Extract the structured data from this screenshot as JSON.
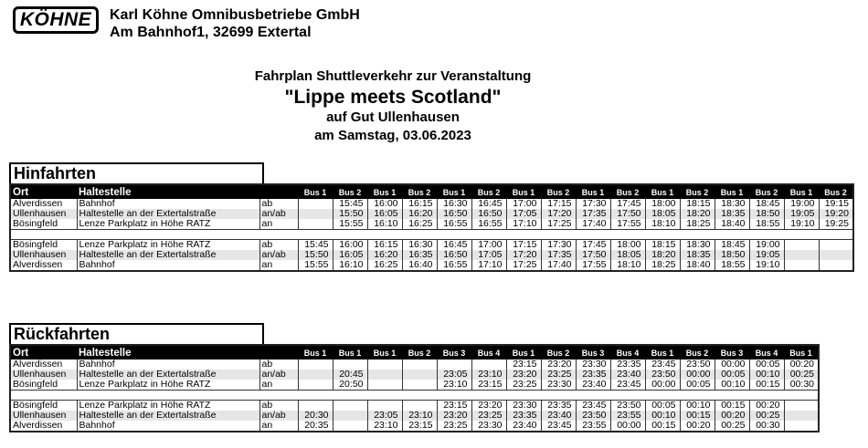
{
  "header": {
    "logo": "KÖHNE",
    "company": "Karl Köhne Omnibusbetriebe GmbH",
    "address": "Am Bahnhof1, 32699 Extertal"
  },
  "title": {
    "line1": "Fahrplan Shuttleverkehr zur Veranstaltung",
    "line2": "\"Lippe meets Scotland\"",
    "line3": "auf Gut Ullenhausen",
    "line4": "am Samstag, 03.06.2023"
  },
  "columns": {
    "ort": "Ort",
    "haltestelle": "Haltestelle"
  },
  "hinfahrten": {
    "title": "Hinfahrten",
    "buses": [
      "Bus 1",
      "Bus 2",
      "Bus 1",
      "Bus 2",
      "Bus 1",
      "Bus 2",
      "Bus 1",
      "Bus 2",
      "Bus 1",
      "Bus 2",
      "Bus 1",
      "Bus 2",
      "Bus 1",
      "Bus 2",
      "Bus 1",
      "Bus 2"
    ],
    "blocks": [
      [
        {
          "ort": "Alverdissen",
          "halt": "Bahnhof",
          "dir": "ab",
          "times": [
            "",
            "15:45",
            "16:00",
            "16:15",
            "16:30",
            "16:45",
            "17:00",
            "17:15",
            "17:30",
            "17:45",
            "18:00",
            "18:15",
            "18:30",
            "18:45",
            "19:00",
            "19:15"
          ]
        },
        {
          "ort": "Ullenhausen",
          "halt": "Haltestelle an der Extertalstraße",
          "dir": "an/ab",
          "times": [
            "",
            "15:50",
            "16:05",
            "16:20",
            "16:50",
            "16:50",
            "17:05",
            "17:20",
            "17:35",
            "17:50",
            "18:05",
            "18:20",
            "18:35",
            "18:50",
            "19:05",
            "19:20"
          ]
        },
        {
          "ort": "Bösingfeld",
          "halt": "Lenze Parkplatz in Höhe RATZ",
          "dir": "an",
          "times": [
            "",
            "15:55",
            "16:10",
            "16:25",
            "16:55",
            "16:55",
            "17:10",
            "17:25",
            "17:40",
            "17:55",
            "18:10",
            "18:25",
            "18:40",
            "18:55",
            "19:10",
            "19:25"
          ]
        }
      ],
      [
        {
          "ort": "Bösingfeld",
          "halt": "Lenze Parkplatz in Höhe RATZ",
          "dir": "ab",
          "times": [
            "15:45",
            "16:00",
            "16:15",
            "16:30",
            "16:45",
            "17:00",
            "17:15",
            "17:30",
            "17:45",
            "18:00",
            "18:15",
            "18:30",
            "18:45",
            "19:00",
            "",
            ""
          ]
        },
        {
          "ort": "Ullenhausen",
          "halt": "Haltestelle an der Extertalstraße",
          "dir": "an/ab",
          "times": [
            "15:50",
            "16:05",
            "16:20",
            "16:35",
            "16:50",
            "17:05",
            "17:20",
            "17:35",
            "17:50",
            "18:05",
            "18:20",
            "18:35",
            "18:50",
            "19:05",
            "",
            ""
          ]
        },
        {
          "ort": "Alverdissen",
          "halt": "Bahnhof",
          "dir": "an",
          "times": [
            "15:55",
            "16:10",
            "16:25",
            "16:40",
            "16:55",
            "17:10",
            "17:25",
            "17:40",
            "17:55",
            "18:10",
            "18:25",
            "18:40",
            "18:55",
            "19:10",
            "",
            ""
          ]
        }
      ]
    ]
  },
  "rueckfahrten": {
    "title": "Rückfahrten",
    "buses": [
      "Bus 1",
      "Bus 1",
      "Bus 1",
      "Bus 2",
      "Bus 3",
      "Bus 4",
      "Bus 1",
      "Bus 2",
      "Bus 3",
      "Bus 4",
      "Bus 1",
      "Bus 2",
      "Bus 3",
      "Bus 4",
      "Bus 1"
    ],
    "blocks": [
      [
        {
          "ort": "Alverdissen",
          "halt": "Bahnhof",
          "dir": "ab",
          "times": [
            "",
            "",
            "",
            "",
            "",
            "",
            "23:15",
            "23:20",
            "23:30",
            "23:35",
            "23:45",
            "23:50",
            "00:00",
            "00:05",
            "00:20"
          ]
        },
        {
          "ort": "Ullenhausen",
          "halt": "Haltestelle an der Extertalstraße",
          "dir": "an/ab",
          "times": [
            "",
            "20:45",
            "",
            "",
            "23:05",
            "23:10",
            "23:20",
            "23:25",
            "23:35",
            "23:40",
            "23:50",
            "00:00",
            "00:05",
            "00:10",
            "00:25"
          ]
        },
        {
          "ort": "Bösingfeld",
          "halt": "Lenze Parkplatz in Höhe RATZ",
          "dir": "an",
          "times": [
            "",
            "20:50",
            "",
            "",
            "23:10",
            "23:15",
            "23:25",
            "23:30",
            "23:40",
            "23:45",
            "00:00",
            "00:05",
            "00:10",
            "00:15",
            "00:30"
          ]
        }
      ],
      [
        {
          "ort": "Bösingfeld",
          "halt": "Lenze Parkplatz in Höhe RATZ",
          "dir": "ab",
          "times": [
            "",
            "",
            "",
            "",
            "23:15",
            "23:20",
            "23:30",
            "23:35",
            "23:45",
            "23:50",
            "00:05",
            "00:10",
            "00:15",
            "00:20",
            ""
          ]
        },
        {
          "ort": "Ullenhausen",
          "halt": "Haltestelle an der Extertalstraße",
          "dir": "an/ab",
          "times": [
            "20:30",
            "",
            "23:05",
            "23:10",
            "23:20",
            "23:25",
            "23:35",
            "23:40",
            "23:50",
            "23:55",
            "00:10",
            "00:15",
            "00:20",
            "00:25",
            ""
          ]
        },
        {
          "ort": "Alverdissen",
          "halt": "Bahnhof",
          "dir": "an",
          "times": [
            "20:35",
            "",
            "23:10",
            "23:15",
            "23:25",
            "23:30",
            "23:40",
            "23:45",
            "23:55",
            "00:00",
            "00:15",
            "00:20",
            "00:25",
            "00:30",
            ""
          ]
        }
      ]
    ]
  }
}
